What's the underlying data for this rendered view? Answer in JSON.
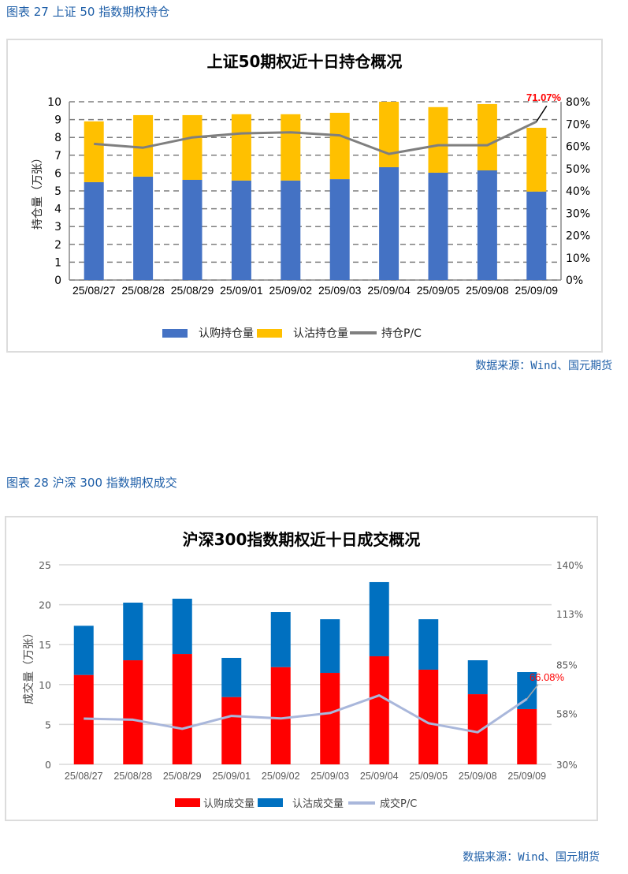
{
  "figure27": {
    "caption": "图表 27  上证 50 指数期权持仓",
    "source": "数据来源：Wind、国元期货"
  },
  "figure28": {
    "caption": "图表 28  沪深 300 指数期权成交",
    "source": "数据来源：Wind、国元期货"
  },
  "chart_data": [
    {
      "type": "bar",
      "stacked": true,
      "title": "上证50期权近十日持仓概况",
      "ylabel": "持仓量（万张）",
      "ylim": [
        0,
        10
      ],
      "yticks": [
        "0",
        "1",
        "2",
        "3",
        "4",
        "5",
        "6",
        "7",
        "8",
        "9",
        "10"
      ],
      "y2lim": [
        0,
        80
      ],
      "y2ticks": [
        "0%",
        "10%",
        "20%",
        "30%",
        "40%",
        "50%",
        "60%",
        "70%",
        "80%"
      ],
      "grid": "dashed horizontal",
      "legend": "bottom",
      "categories": [
        "25/08/27",
        "25/08/28",
        "25/08/29",
        "25/09/01",
        "25/09/02",
        "25/09/03",
        "25/09/04",
        "25/09/05",
        "25/09/08",
        "25/09/09"
      ],
      "series": [
        {
          "name": "认购持仓量",
          "kind": "bar",
          "color": "#4472c4",
          "values": [
            5.49,
            5.8,
            5.62,
            5.58,
            5.58,
            5.66,
            6.33,
            6.02,
            6.15,
            4.96
          ]
        },
        {
          "name": "认沽持仓量",
          "kind": "bar",
          "color": "#ffc000",
          "values": [
            3.41,
            3.45,
            3.63,
            3.72,
            3.72,
            3.72,
            3.67,
            3.68,
            3.72,
            3.58
          ]
        },
        {
          "name": "持仓P/C",
          "kind": "line",
          "axis": "right",
          "color": "#7f7f7f",
          "values": [
            61.1,
            59.4,
            64.0,
            65.8,
            66.3,
            64.9,
            56.6,
            60.5,
            60.5,
            71.07
          ]
        }
      ],
      "annotation": "71.07%"
    },
    {
      "type": "bar",
      "stacked": true,
      "title": "沪深300指数期权近十日成交概况",
      "ylabel": "成交量（万张）",
      "ylim": [
        0,
        25
      ],
      "yticks": [
        "0",
        "5",
        "10",
        "15",
        "20",
        "25"
      ],
      "y2lim": [
        30,
        140
      ],
      "y2ticks": [
        "30%",
        "58%",
        "85%",
        "113%",
        "140%"
      ],
      "grid": "solid horizontal",
      "legend": "bottom",
      "categories": [
        "25/08/27",
        "25/08/28",
        "25/08/29",
        "25/09/01",
        "25/09/02",
        "25/09/03",
        "25/09/04",
        "25/09/05",
        "25/09/08",
        "25/09/09"
      ],
      "series": [
        {
          "name": "认购成交量",
          "kind": "bar",
          "color": "#ff0000",
          "values": [
            11.2,
            13.04,
            13.83,
            8.43,
            12.18,
            11.46,
            13.54,
            11.86,
            8.79,
            6.92
          ]
        },
        {
          "name": "认沽成交量",
          "kind": "bar",
          "color": "#0070c0",
          "values": [
            6.16,
            7.22,
            6.92,
            4.91,
            6.89,
            6.72,
            9.29,
            6.32,
            4.25,
            4.64
          ]
        },
        {
          "name": "成交P/C",
          "kind": "line",
          "axis": "right",
          "color": "#a9b7db",
          "values": [
            55.2,
            54.6,
            49.6,
            56.7,
            55.3,
            58.3,
            68.0,
            52.7,
            47.7,
            66.08
          ]
        }
      ],
      "annotation": "66.08%"
    }
  ]
}
